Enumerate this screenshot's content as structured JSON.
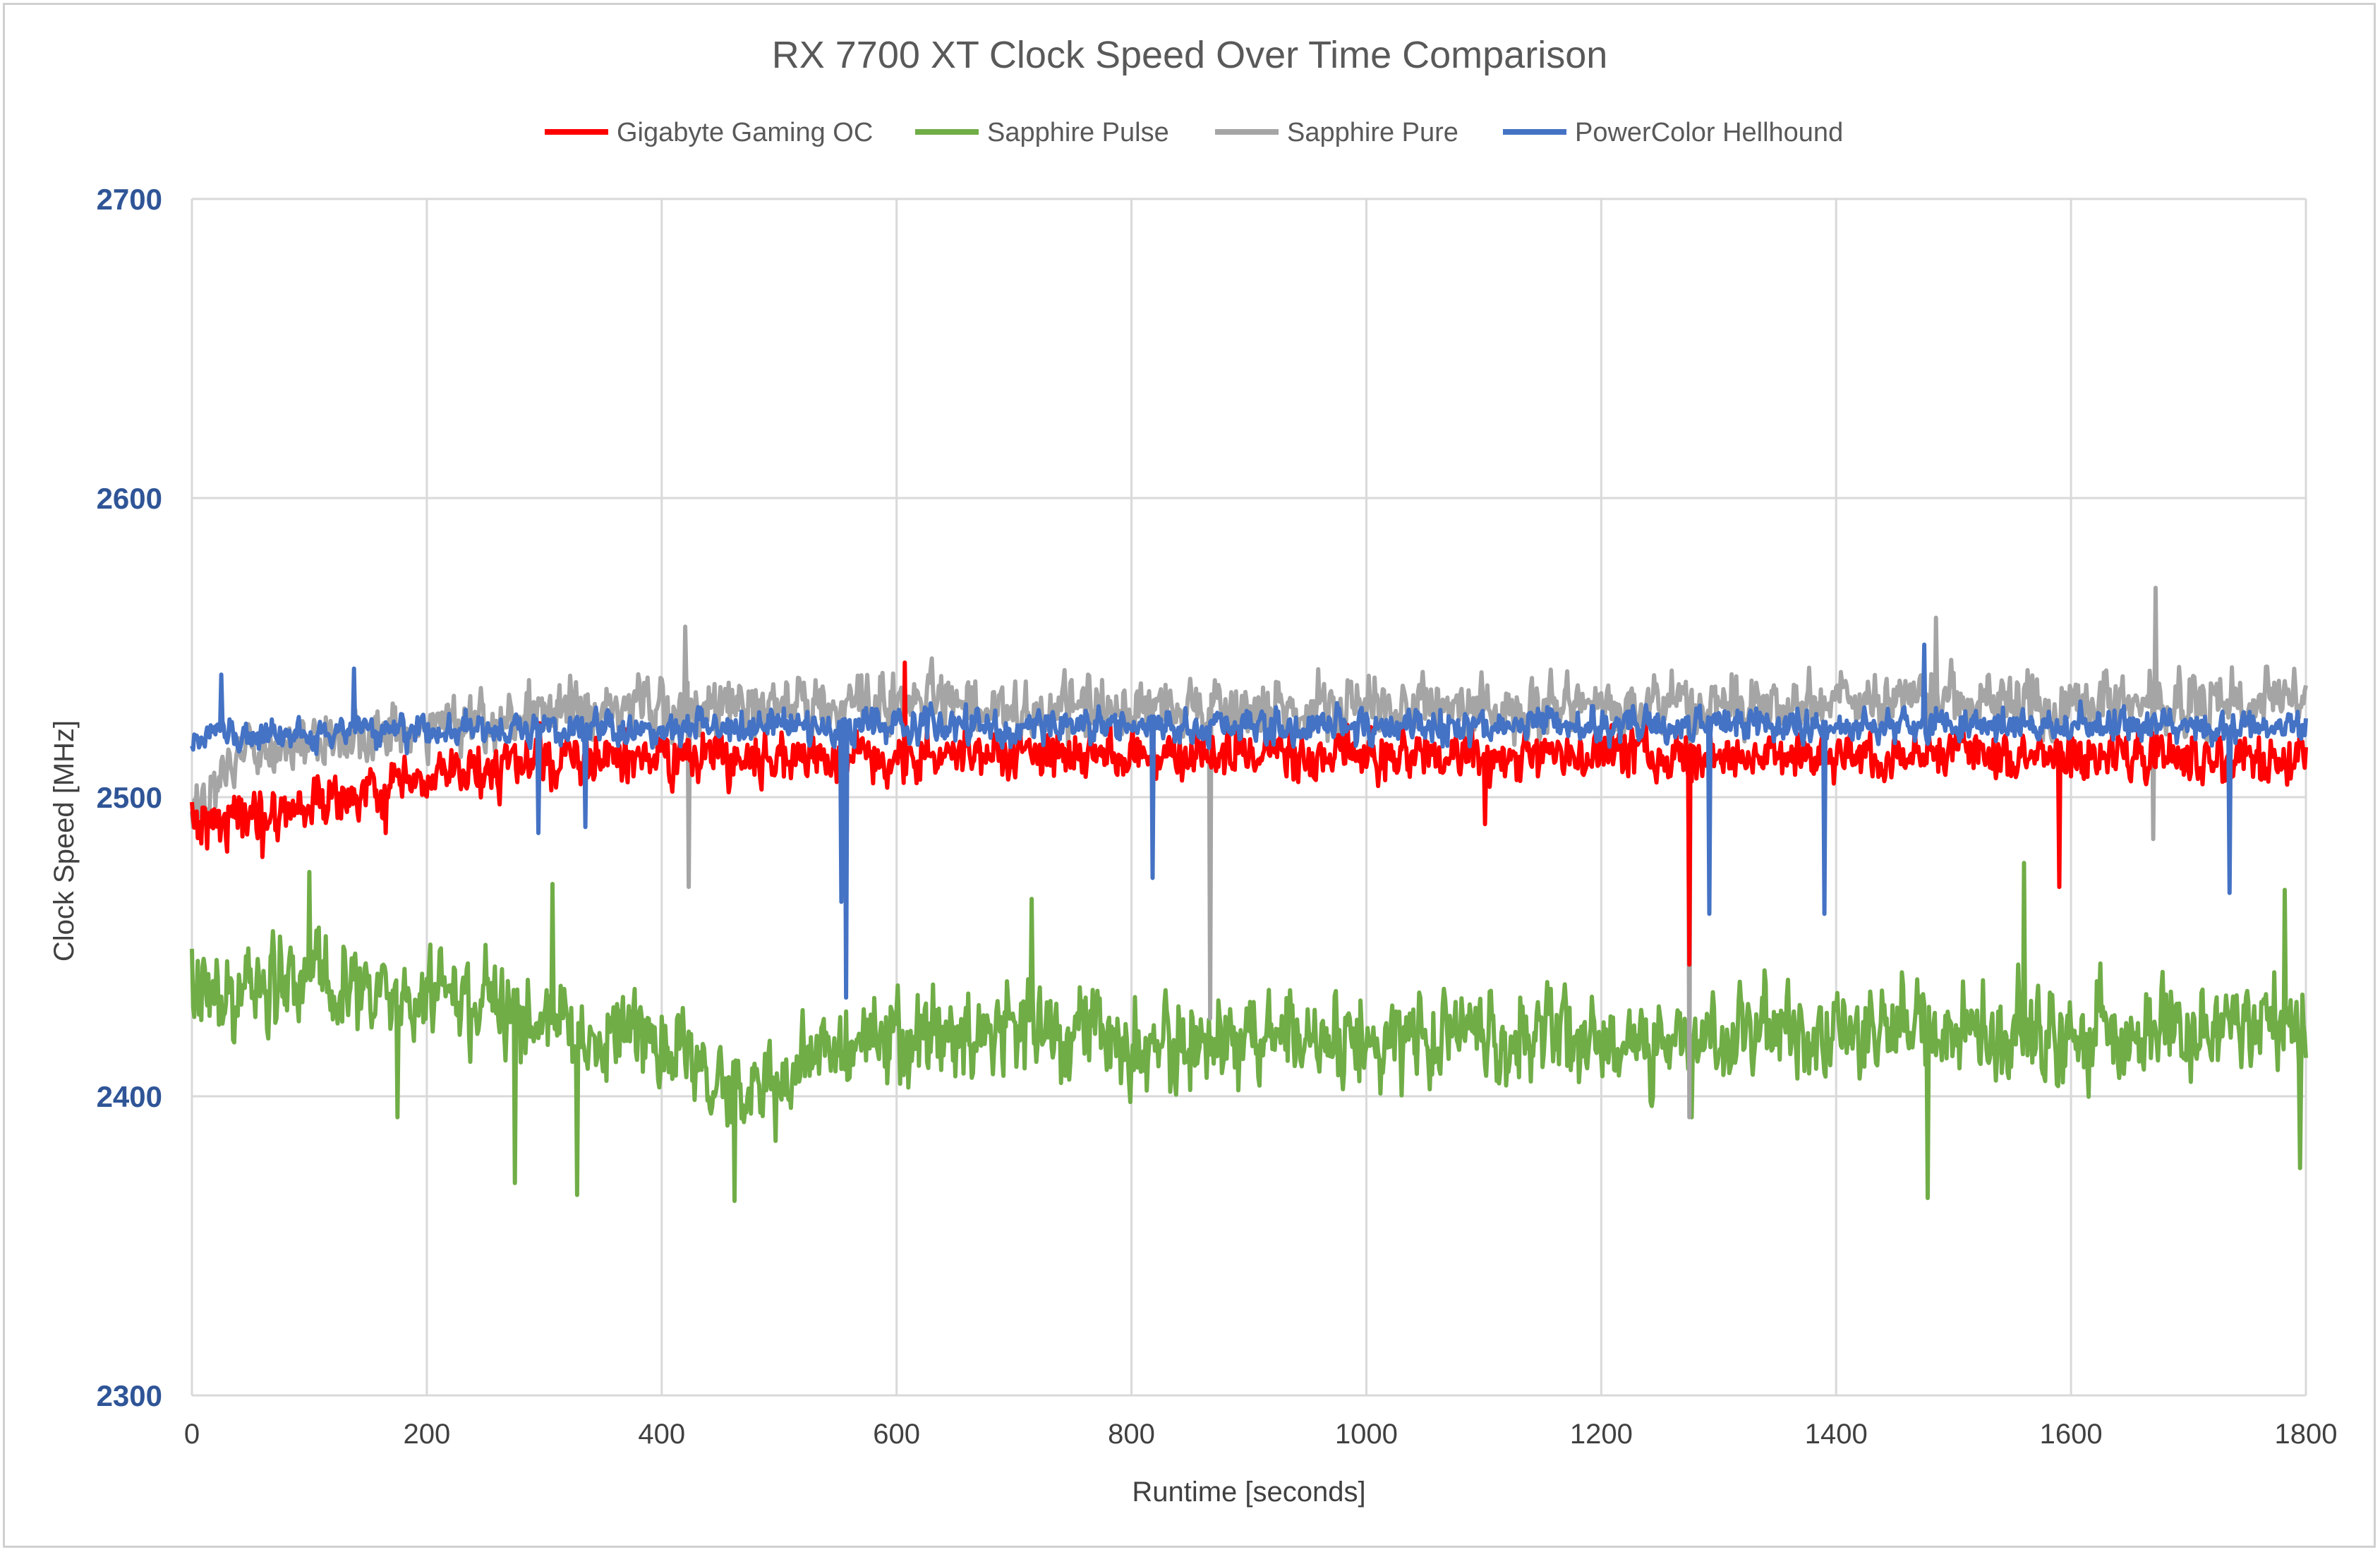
{
  "chart_data": {
    "type": "line",
    "title": "RX 7700 XT Clock Speed Over Time Comparison",
    "xlabel": "Runtime [seconds]",
    "ylabel": "Clock Speed [MHz]",
    "xlim": [
      0,
      1800
    ],
    "ylim": [
      2300,
      2700
    ],
    "x_ticks": [
      0,
      200,
      400,
      600,
      800,
      1000,
      1200,
      1400,
      1600,
      1800
    ],
    "y_ticks": [
      2300,
      2400,
      2500,
      2600,
      2700
    ],
    "grid": true,
    "legend_position": "top-center",
    "sample_interval_seconds": 1,
    "series": [
      {
        "name": "Gigabyte Gaming OC",
        "color": "#ff0000",
        "summary": {
          "start_mean": 2492,
          "steady_mean": 2514,
          "noise": 6
        },
        "values_keyframes": {
          "x": [
            0,
            60,
            180,
            230,
            300,
            400,
            600,
            800,
            1000,
            1200,
            1400,
            1600,
            1800
          ],
          "y": [
            2492,
            2495,
            2503,
            2508,
            2512,
            2513,
            2514,
            2514,
            2514,
            2514,
            2514,
            2514,
            2514
          ]
        },
        "spikes": [
          {
            "x": 60,
            "y": 2480
          },
          {
            "x": 165,
            "y": 2488
          },
          {
            "x": 607,
            "y": 2545
          },
          {
            "x": 1101,
            "y": 2491
          },
          {
            "x": 1275,
            "y": 2444
          },
          {
            "x": 1590,
            "y": 2470
          }
        ]
      },
      {
        "name": "Sapphire Pulse",
        "color": "#70ad47",
        "summary": {
          "start_mean": 2436,
          "steady_mean": 2419,
          "noise": 11
        },
        "values_keyframes": {
          "x": [
            0,
            100,
            200,
            300,
            400,
            450,
            500,
            550,
            600,
            700,
            800,
            1000,
            1200,
            1400,
            1600,
            1800
          ],
          "y": [
            2435,
            2437,
            2432,
            2424,
            2418,
            2400,
            2405,
            2418,
            2418,
            2422,
            2418,
            2420,
            2418,
            2422,
            2422,
            2424
          ]
        },
        "spikes": [
          {
            "x": 100,
            "y": 2475
          },
          {
            "x": 175,
            "y": 2393
          },
          {
            "x": 275,
            "y": 2371
          },
          {
            "x": 307,
            "y": 2471
          },
          {
            "x": 328,
            "y": 2367
          },
          {
            "x": 462,
            "y": 2365
          },
          {
            "x": 715,
            "y": 2466
          },
          {
            "x": 1277,
            "y": 2393
          },
          {
            "x": 1478,
            "y": 2366
          },
          {
            "x": 1560,
            "y": 2478
          },
          {
            "x": 1782,
            "y": 2469
          },
          {
            "x": 1795,
            "y": 2376
          }
        ]
      },
      {
        "name": "Sapphire Pure",
        "color": "#a5a5a5",
        "summary": {
          "start_mean": 2497,
          "steady_mean": 2530,
          "noise": 7
        },
        "values_keyframes": {
          "x": [
            0,
            50,
            150,
            300,
            400,
            600,
            800,
            1000,
            1200,
            1400,
            1600,
            1800
          ],
          "y": [
            2497,
            2515,
            2522,
            2528,
            2530,
            2531,
            2530,
            2530,
            2530,
            2531,
            2531,
            2532
          ]
        },
        "spikes": [
          {
            "x": 420,
            "y": 2557
          },
          {
            "x": 423,
            "y": 2470
          },
          {
            "x": 867,
            "y": 2426
          },
          {
            "x": 1275,
            "y": 2393
          },
          {
            "x": 1485,
            "y": 2560
          },
          {
            "x": 1672,
            "y": 2570
          },
          {
            "x": 1670,
            "y": 2486
          }
        ]
      },
      {
        "name": "PowerColor Hellhound",
        "color": "#4472c4",
        "summary": {
          "start_mean": 2520,
          "steady_mean": 2524,
          "noise": 4
        },
        "values_keyframes": {
          "x": [
            0,
            200,
            400,
            600,
            800,
            1000,
            1200,
            1400,
            1600,
            1800
          ],
          "y": [
            2520,
            2522,
            2524,
            2524,
            2524,
            2524,
            2524,
            2524,
            2524,
            2524
          ]
        },
        "spikes": [
          {
            "x": 25,
            "y": 2541
          },
          {
            "x": 138,
            "y": 2543
          },
          {
            "x": 295,
            "y": 2488
          },
          {
            "x": 335,
            "y": 2490
          },
          {
            "x": 553,
            "y": 2465
          },
          {
            "x": 557,
            "y": 2433
          },
          {
            "x": 818,
            "y": 2473
          },
          {
            "x": 1292,
            "y": 2461
          },
          {
            "x": 1390,
            "y": 2461
          },
          {
            "x": 1475,
            "y": 2551
          },
          {
            "x": 1735,
            "y": 2468
          }
        ]
      }
    ]
  }
}
